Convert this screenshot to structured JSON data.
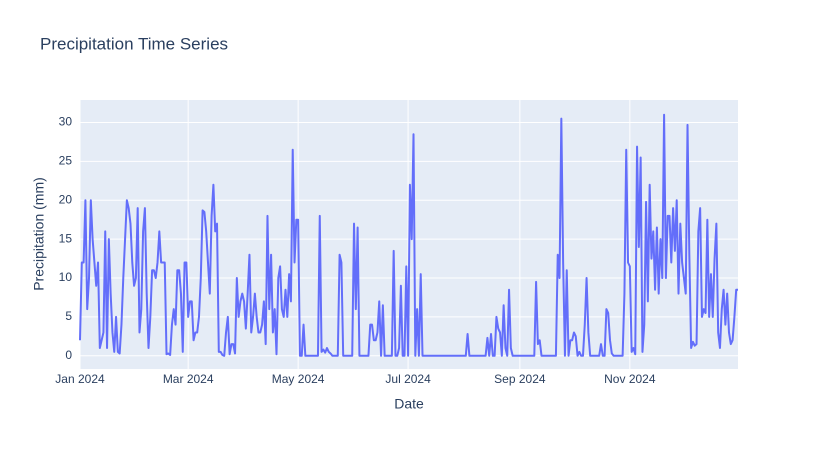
{
  "chart_data": {
    "type": "line",
    "title": "Precipitation Time Series",
    "x_label": "Date",
    "y_label": "Precipitation (mm)",
    "color": "#636efa",
    "grid": true,
    "xlim": [
      "2024-01-01",
      "2024-12-31"
    ],
    "ylim": [
      -1.7,
      32.9
    ],
    "yticks": [
      0,
      5,
      10,
      15,
      20,
      25,
      30
    ],
    "xticks": [
      {
        "value": "2024-01-01",
        "label": "Jan 2024"
      },
      {
        "value": "2024-03-01",
        "label": "Mar 2024"
      },
      {
        "value": "2024-05-01",
        "label": "May 2024"
      },
      {
        "value": "2024-07-01",
        "label": "Jul 2024"
      },
      {
        "value": "2024-09-01",
        "label": "Sep 2024"
      },
      {
        "value": "2024-11-01",
        "label": "Nov 2024"
      }
    ],
    "x": [
      "2024-01-01",
      "2024-01-02",
      "2024-01-03",
      "2024-01-04",
      "2024-01-05",
      "2024-01-06",
      "2024-01-07",
      "2024-01-08",
      "2024-01-09",
      "2024-01-10",
      "2024-01-11",
      "2024-01-12",
      "2024-01-13",
      "2024-01-14",
      "2024-01-15",
      "2024-01-16",
      "2024-01-17",
      "2024-01-18",
      "2024-01-19",
      "2024-01-20",
      "2024-01-21",
      "2024-01-22",
      "2024-01-23",
      "2024-01-24",
      "2024-01-25",
      "2024-01-26",
      "2024-01-27",
      "2024-01-28",
      "2024-01-29",
      "2024-01-30",
      "2024-01-31",
      "2024-02-01",
      "2024-02-02",
      "2024-02-03",
      "2024-02-04",
      "2024-02-05",
      "2024-02-06",
      "2024-02-07",
      "2024-02-08",
      "2024-02-09",
      "2024-02-10",
      "2024-02-11",
      "2024-02-12",
      "2024-02-13",
      "2024-02-14",
      "2024-02-15",
      "2024-02-16",
      "2024-02-17",
      "2024-02-18",
      "2024-02-19",
      "2024-02-20",
      "2024-02-21",
      "2024-02-22",
      "2024-02-23",
      "2024-02-24",
      "2024-02-25",
      "2024-02-26",
      "2024-02-27",
      "2024-02-28",
      "2024-02-29",
      "2024-03-01",
      "2024-03-02",
      "2024-03-03",
      "2024-03-04",
      "2024-03-05",
      "2024-03-06",
      "2024-03-07",
      "2024-03-08",
      "2024-03-09",
      "2024-03-10",
      "2024-03-11",
      "2024-03-12",
      "2024-03-13",
      "2024-03-14",
      "2024-03-15",
      "2024-03-16",
      "2024-03-17",
      "2024-03-18",
      "2024-03-19",
      "2024-03-20",
      "2024-03-21",
      "2024-03-22",
      "2024-03-23",
      "2024-03-24",
      "2024-03-25",
      "2024-03-26",
      "2024-03-27",
      "2024-03-28",
      "2024-03-29",
      "2024-03-30",
      "2024-03-31",
      "2024-04-01",
      "2024-04-02",
      "2024-04-03",
      "2024-04-04",
      "2024-04-05",
      "2024-04-06",
      "2024-04-07",
      "2024-04-08",
      "2024-04-09",
      "2024-04-10",
      "2024-04-11",
      "2024-04-12",
      "2024-04-13",
      "2024-04-14",
      "2024-04-15",
      "2024-04-16",
      "2024-04-17",
      "2024-04-18",
      "2024-04-19",
      "2024-04-20",
      "2024-04-21",
      "2024-04-22",
      "2024-04-23",
      "2024-04-24",
      "2024-04-25",
      "2024-04-26",
      "2024-04-27",
      "2024-04-28",
      "2024-04-29",
      "2024-04-30",
      "2024-05-01",
      "2024-05-02",
      "2024-05-03",
      "2024-05-04",
      "2024-05-05",
      "2024-05-06",
      "2024-05-07",
      "2024-05-08",
      "2024-05-09",
      "2024-05-10",
      "2024-05-11",
      "2024-05-12",
      "2024-05-13",
      "2024-05-14",
      "2024-05-15",
      "2024-05-16",
      "2024-05-17",
      "2024-05-18",
      "2024-05-19",
      "2024-05-20",
      "2024-05-21",
      "2024-05-22",
      "2024-05-23",
      "2024-05-24",
      "2024-05-25",
      "2024-05-26",
      "2024-05-27",
      "2024-05-28",
      "2024-05-29",
      "2024-05-30",
      "2024-05-31",
      "2024-06-01",
      "2024-06-02",
      "2024-06-03",
      "2024-06-04",
      "2024-06-05",
      "2024-06-06",
      "2024-06-07",
      "2024-06-08",
      "2024-06-09",
      "2024-06-10",
      "2024-06-11",
      "2024-06-12",
      "2024-06-13",
      "2024-06-14",
      "2024-06-15",
      "2024-06-16",
      "2024-06-17",
      "2024-06-18",
      "2024-06-19",
      "2024-06-20",
      "2024-06-21",
      "2024-06-22",
      "2024-06-23",
      "2024-06-24",
      "2024-06-25",
      "2024-06-26",
      "2024-06-27",
      "2024-06-28",
      "2024-06-29",
      "2024-06-30",
      "2024-07-01",
      "2024-07-02",
      "2024-07-03",
      "2024-07-04",
      "2024-07-05",
      "2024-07-06",
      "2024-07-07",
      "2024-07-08",
      "2024-07-09",
      "2024-07-10",
      "2024-07-11",
      "2024-07-12",
      "2024-07-13",
      "2024-07-14",
      "2024-07-15",
      "2024-07-16",
      "2024-07-17",
      "2024-07-18",
      "2024-07-19",
      "2024-07-20",
      "2024-07-21",
      "2024-07-22",
      "2024-07-23",
      "2024-07-24",
      "2024-07-25",
      "2024-07-26",
      "2024-07-27",
      "2024-07-28",
      "2024-07-29",
      "2024-07-30",
      "2024-07-31",
      "2024-08-01",
      "2024-08-02",
      "2024-08-03",
      "2024-08-04",
      "2024-08-05",
      "2024-08-06",
      "2024-08-07",
      "2024-08-08",
      "2024-08-09",
      "2024-08-10",
      "2024-08-11",
      "2024-08-12",
      "2024-08-13",
      "2024-08-14",
      "2024-08-15",
      "2024-08-16",
      "2024-08-17",
      "2024-08-18",
      "2024-08-19",
      "2024-08-20",
      "2024-08-21",
      "2024-08-22",
      "2024-08-23",
      "2024-08-24",
      "2024-08-25",
      "2024-08-26",
      "2024-08-27",
      "2024-08-28",
      "2024-08-29",
      "2024-08-30",
      "2024-08-31",
      "2024-09-01",
      "2024-09-02",
      "2024-09-03",
      "2024-09-04",
      "2024-09-05",
      "2024-09-06",
      "2024-09-07",
      "2024-09-08",
      "2024-09-09",
      "2024-09-10",
      "2024-09-11",
      "2024-09-12",
      "2024-09-13",
      "2024-09-14",
      "2024-09-15",
      "2024-09-16",
      "2024-09-17",
      "2024-09-18",
      "2024-09-19",
      "2024-09-20",
      "2024-09-21",
      "2024-09-22",
      "2024-09-23",
      "2024-09-24",
      "2024-09-25",
      "2024-09-26",
      "2024-09-27",
      "2024-09-28",
      "2024-09-29",
      "2024-09-30",
      "2024-10-01",
      "2024-10-02",
      "2024-10-03",
      "2024-10-04",
      "2024-10-05",
      "2024-10-06",
      "2024-10-07",
      "2024-10-08",
      "2024-10-09",
      "2024-10-10",
      "2024-10-11",
      "2024-10-12",
      "2024-10-13",
      "2024-10-14",
      "2024-10-15",
      "2024-10-16",
      "2024-10-17",
      "2024-10-18",
      "2024-10-19",
      "2024-10-20",
      "2024-10-21",
      "2024-10-22",
      "2024-10-23",
      "2024-10-24",
      "2024-10-25",
      "2024-10-26",
      "2024-10-27",
      "2024-10-28",
      "2024-10-29",
      "2024-10-30",
      "2024-10-31",
      "2024-11-01",
      "2024-11-02",
      "2024-11-03",
      "2024-11-04",
      "2024-11-05",
      "2024-11-06",
      "2024-11-07",
      "2024-11-08",
      "2024-11-09",
      "2024-11-10",
      "2024-11-11",
      "2024-11-12",
      "2024-11-13",
      "2024-11-14",
      "2024-11-15",
      "2024-11-16",
      "2024-11-17",
      "2024-11-18",
      "2024-11-19",
      "2024-11-20",
      "2024-11-21",
      "2024-11-22",
      "2024-11-23",
      "2024-11-24",
      "2024-11-25",
      "2024-11-26",
      "2024-11-27",
      "2024-11-28",
      "2024-11-29",
      "2024-11-30",
      "2024-12-01",
      "2024-12-02",
      "2024-12-03",
      "2024-12-04",
      "2024-12-05",
      "2024-12-06",
      "2024-12-07",
      "2024-12-08",
      "2024-12-09",
      "2024-12-10",
      "2024-12-11",
      "2024-12-12",
      "2024-12-13",
      "2024-12-14",
      "2024-12-15",
      "2024-12-16",
      "2024-12-17",
      "2024-12-18",
      "2024-12-19",
      "2024-12-20",
      "2024-12-21",
      "2024-12-22",
      "2024-12-23",
      "2024-12-24",
      "2024-12-25",
      "2024-12-26",
      "2024-12-27",
      "2024-12-28",
      "2024-12-29",
      "2024-12-30",
      "2024-12-31"
    ],
    "values": [
      2,
      12,
      12,
      20,
      6,
      10,
      20,
      15,
      12,
      9,
      12,
      1,
      2,
      3,
      16,
      1,
      15,
      8,
      3,
      0.5,
      5,
      0.5,
      0.3,
      4,
      10,
      15,
      20,
      19,
      17,
      12,
      9,
      10,
      19,
      3,
      6,
      16,
      19,
      8,
      1,
      5,
      11,
      11,
      10,
      12,
      16,
      12,
      12,
      12,
      0.2,
      0.3,
      0.1,
      4,
      6,
      4,
      11,
      11,
      8,
      0.5,
      12,
      12,
      5,
      7,
      7,
      2,
      3,
      3,
      5,
      10,
      18.7,
      18.5,
      16,
      12,
      8,
      18,
      22,
      16,
      17,
      0.5,
      0.5,
      0.1,
      0,
      3,
      5,
      0.2,
      1.5,
      1.5,
      0.3,
      10,
      5,
      7,
      8,
      7,
      3.5,
      8,
      13,
      3,
      5,
      8,
      5,
      3,
      3,
      4,
      7,
      1.5,
      18,
      6,
      13,
      3,
      6,
      0.2,
      10,
      11.5,
      6,
      5,
      8.5,
      5,
      10.5,
      7,
      26.5,
      12,
      17.5,
      17.5,
      0,
      0,
      4,
      0,
      0,
      0,
      0,
      0,
      0,
      0,
      0,
      18,
      0.5,
      0.8,
      0.4,
      1,
      0.5,
      0.3,
      0,
      0,
      0,
      0,
      13,
      12,
      0,
      0,
      0,
      0,
      0,
      0,
      17,
      6,
      16.5,
      0,
      0,
      0,
      0,
      0,
      0,
      4,
      4,
      2,
      2,
      3,
      7,
      0,
      6.5,
      0,
      0,
      0,
      0,
      0,
      13.5,
      0,
      0,
      1,
      9,
      0,
      0,
      11.5,
      0,
      22,
      15,
      28.5,
      0,
      6,
      0,
      10.5,
      0,
      0,
      0,
      0,
      0,
      0,
      0,
      0,
      0,
      0,
      0,
      0,
      0,
      0,
      0,
      0,
      0,
      0,
      0,
      0,
      0,
      0,
      0,
      0,
      0,
      2.8,
      0,
      0,
      0,
      0,
      0,
      0,
      0,
      0,
      0,
      0,
      2.3,
      0,
      2.8,
      0,
      0,
      5,
      3.5,
      3,
      0,
      6.5,
      1,
      0,
      8.5,
      1,
      0,
      0,
      0,
      0,
      0,
      0,
      0,
      0,
      0,
      0,
      0,
      0,
      0,
      9.5,
      1.5,
      2,
      0,
      0,
      0,
      0,
      0,
      0,
      0,
      0,
      0,
      13,
      10,
      30.5,
      12,
      0,
      11,
      0,
      2,
      2,
      3,
      2.5,
      0,
      0.5,
      0,
      0,
      4,
      10,
      3,
      0,
      0,
      0,
      0,
      0,
      0,
      1.5,
      0,
      0,
      6,
      5.5,
      2,
      0.3,
      0,
      0,
      0,
      0,
      0,
      0,
      8,
      26.5,
      12,
      11.5,
      0.5,
      1,
      0.2,
      26.9,
      14,
      25.5,
      0.5,
      4,
      19.8,
      7,
      22,
      12.5,
      16,
      8.5,
      16.5,
      8,
      15,
      10,
      31,
      10,
      18,
      18,
      12,
      19,
      13.5,
      20,
      8,
      17,
      12,
      10,
      8,
      29.7,
      13,
      1,
      1.8,
      1.3,
      1.5,
      16,
      19,
      5,
      6,
      5.5,
      17.5,
      5,
      10.5,
      5,
      12.5,
      17,
      3,
      1,
      6,
      8.5,
      4,
      8,
      3,
      1.5,
      2,
      5,
      8.5,
      8.5
    ]
  }
}
